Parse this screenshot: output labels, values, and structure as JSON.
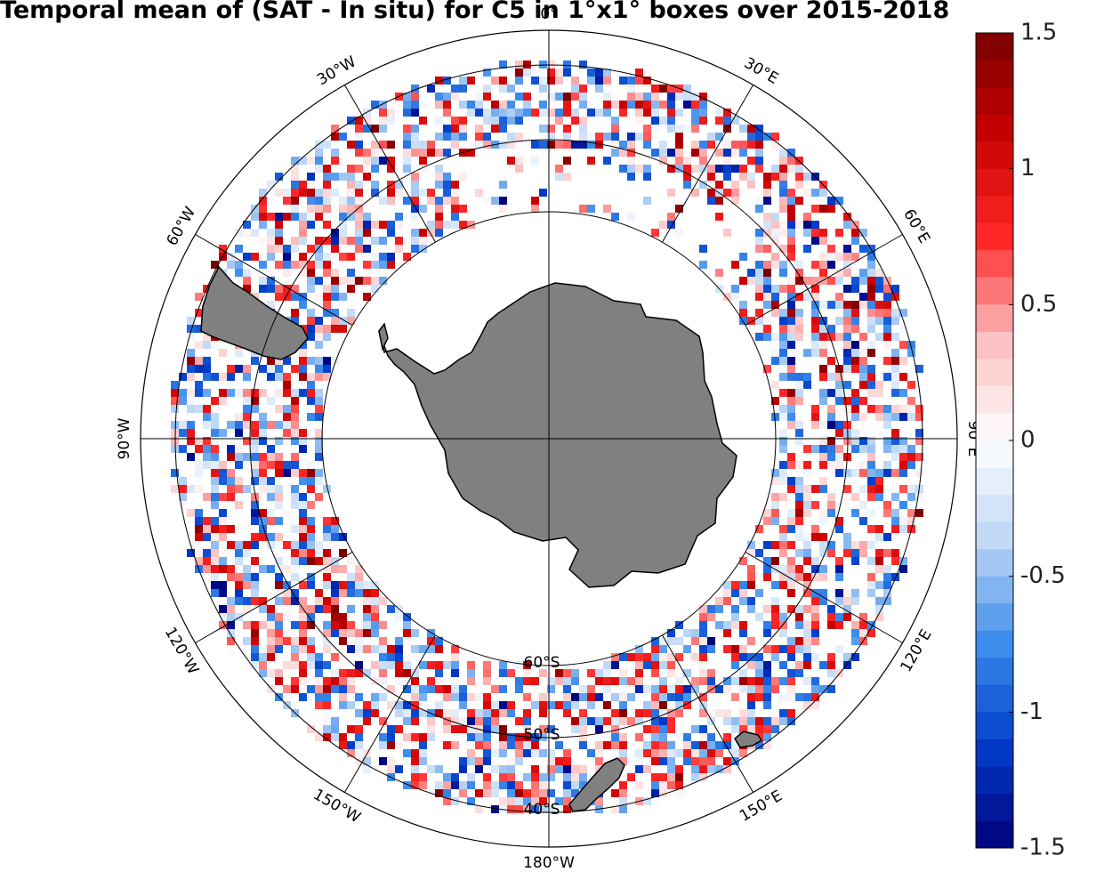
{
  "title": "Temporal mean of (SAT - In situ) for C5 in 1°x1° boxes over 2015-2018",
  "projection": "south polar stereographic",
  "grid_resolution": "1°x1°",
  "longitude_labels": [
    {
      "text": "0°",
      "lon": 0
    },
    {
      "text": "30°E",
      "lon": 30
    },
    {
      "text": "60°E",
      "lon": 60
    },
    {
      "text": "90°E",
      "lon": 90
    },
    {
      "text": "120°E",
      "lon": 120
    },
    {
      "text": "150°E",
      "lon": 150
    },
    {
      "text": "180°W",
      "lon": 180
    },
    {
      "text": "150°W",
      "lon": -150
    },
    {
      "text": "120°W",
      "lon": -120
    },
    {
      "text": "90°W",
      "lon": -90
    },
    {
      "text": "60°W",
      "lon": -60
    },
    {
      "text": "30°W",
      "lon": -30
    }
  ],
  "latitude_labels": [
    {
      "text": "60°S",
      "lat": -60
    },
    {
      "text": "50°S",
      "lat": -50
    },
    {
      "text": "40°S",
      "lat": -40
    }
  ],
  "colorbar": {
    "min": -1.5,
    "max": 1.5,
    "ticks": [
      "1.5",
      "1",
      "0.5",
      "0",
      "-0.5",
      "-1",
      "-1.5"
    ],
    "tick_values": [
      1.5,
      1,
      0.5,
      0,
      -0.5,
      -1,
      -1.5
    ],
    "colormap": "blue-white-red",
    "neg_color": "#00007a",
    "mid_color": "#ffffff",
    "pos_color": "#780000"
  },
  "colors": {
    "land": "#808080",
    "coast": "#000000",
    "grid": "#000000"
  }
}
